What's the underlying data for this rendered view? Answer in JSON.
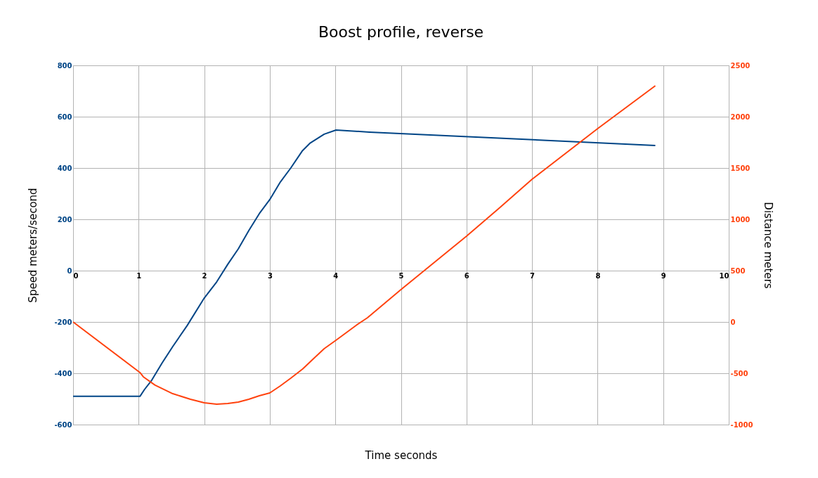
{
  "chart_data": {
    "type": "line",
    "title": "Boost profile, reverse",
    "xlabel": "Time seconds",
    "ylabel": "Speed meters/second",
    "y2label": "Distance meters",
    "xlim": [
      0,
      10
    ],
    "xticks": [
      0,
      1,
      2,
      3,
      4,
      5,
      6,
      7,
      8,
      9,
      10
    ],
    "ylim": [
      -600,
      800
    ],
    "yticks": [
      -600,
      -400,
      -200,
      0,
      200,
      400,
      600,
      800
    ],
    "y2lim": [
      -1000,
      2500
    ],
    "y2ticks": [
      -1000,
      -500,
      0,
      500,
      1000,
      1500,
      2000,
      2500
    ],
    "grid": true,
    "line_style": "solid",
    "series": [
      {
        "color": "#004586",
        "x": [
          0,
          1.02,
          1.09,
          1.2,
          1.36,
          1.52,
          1.74,
          2.0,
          2.19,
          2.36,
          2.52,
          2.68,
          2.84,
          3.0,
          3.16,
          3.32,
          3.5,
          3.61,
          3.83,
          4.01,
          4.52,
          8.88
        ],
        "values": [
          -490,
          -490,
          -463,
          -427,
          -359,
          -296,
          -214,
          -107,
          -44,
          25,
          85,
          156,
          222,
          277,
          345,
          400,
          468,
          496,
          532,
          548,
          540,
          488
        ]
      },
      {
        "color": "#ff420e",
        "axis": "y2",
        "x": [
          0,
          1.02,
          1.07,
          1.25,
          1.52,
          1.79,
          2.0,
          2.19,
          2.36,
          2.52,
          2.68,
          2.84,
          3.0,
          3.16,
          3.32,
          3.5,
          3.67,
          3.83,
          4.01,
          4.17,
          4.33,
          4.49,
          5.0,
          6.0,
          6.5,
          7.0,
          8.0,
          8.88
        ],
        "values": [
          0,
          -493,
          -534,
          -616,
          -699,
          -753,
          -788,
          -801,
          -795,
          -781,
          -753,
          -719,
          -692,
          -623,
          -548,
          -459,
          -356,
          -260,
          -178,
          -103,
          -27,
          41,
          315,
          836,
          1110,
          1390,
          1884,
          2301
        ]
      }
    ]
  }
}
